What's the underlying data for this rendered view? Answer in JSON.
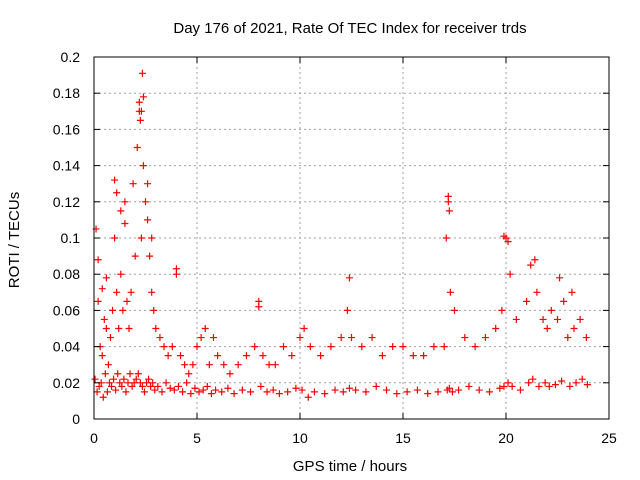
{
  "chart_data": {
    "type": "scatter",
    "title": "Day 176 of 2021, Rate Of TEC Index for receiver trds",
    "xlabel": "GPS time / hours",
    "ylabel": "ROTI / TECUs",
    "xlim": [
      0,
      25
    ],
    "ylim": [
      0,
      0.2
    ],
    "xticks": [
      0,
      5,
      10,
      15,
      20,
      25
    ],
    "xtick_labels": [
      "0",
      "5",
      "10",
      "15",
      "20",
      "25"
    ],
    "yticks": [
      0,
      0.02,
      0.04,
      0.06,
      0.08,
      0.1,
      0.12,
      0.14,
      0.16,
      0.18,
      0.2
    ],
    "ytick_labels": [
      "0",
      "0.02",
      "0.04",
      "0.06",
      "0.08",
      "0.1",
      "0.12",
      "0.14",
      "0.16",
      "0.18",
      "0.2"
    ],
    "grid": true,
    "marker": "+",
    "color": "#ff0000",
    "series": [
      {
        "name": "ROTI",
        "x": [
          0.05,
          0.1,
          0.2,
          0.3,
          0.4,
          0.5,
          0.6,
          0.7,
          0.8,
          0.9,
          1.0,
          1.1,
          1.2,
          1.3,
          1.4,
          1.5,
          1.6,
          1.7,
          1.8,
          1.9,
          2.0,
          2.1,
          2.2,
          2.3,
          2.4,
          2.5,
          2.6,
          2.7,
          2.8,
          2.9,
          3.0,
          3.2,
          3.4,
          3.6,
          3.8,
          4.0,
          4.2,
          4.4,
          4.6,
          4.8,
          5.0,
          5.2,
          5.4,
          5.6,
          5.8,
          6.0,
          6.3,
          6.6,
          7.0,
          7.4,
          7.8,
          8.0,
          8.2,
          8.5,
          8.8,
          9.2,
          9.6,
          10.0,
          10.2,
          10.5,
          11.0,
          11.5,
          12.0,
          12.3,
          12.5,
          13.0,
          13.5,
          14.0,
          14.5,
          15.0,
          15.5,
          16.0,
          16.5,
          17.0,
          17.1,
          17.2,
          17.3,
          17.5,
          18.0,
          18.5,
          19.0,
          19.5,
          19.8,
          20.0,
          20.2,
          20.5,
          21.0,
          21.2,
          21.5,
          21.8,
          22.0,
          22.2,
          22.5,
          22.8,
          23.0,
          23.3,
          23.6,
          23.9,
          0.15,
          0.25,
          0.35,
          0.45,
          0.55,
          0.65,
          0.75,
          0.85,
          0.95,
          1.05,
          1.15,
          1.25,
          1.35,
          1.45,
          1.55,
          1.65,
          1.75,
          1.85,
          1.95,
          2.05,
          2.15,
          2.25,
          2.35,
          2.45,
          2.55,
          2.65,
          2.75,
          2.85,
          2.95,
          3.1,
          3.3,
          3.5,
          3.7,
          3.9,
          4.1,
          4.3,
          4.5,
          4.7,
          4.9,
          5.1,
          5.3,
          5.5,
          5.7,
          5.9,
          6.2,
          6.5,
          6.8,
          7.2,
          7.6,
          8.1,
          8.4,
          8.7,
          9.0,
          9.4,
          9.8,
          10.1,
          10.4,
          10.7,
          11.2,
          11.7,
          12.1,
          12.4,
          12.7,
          13.2,
          13.7,
          14.2,
          14.7,
          15.2,
          15.7,
          16.2,
          16.7,
          17.15,
          17.25,
          17.4,
          17.7,
          18.2,
          18.7,
          19.2,
          19.7,
          19.9,
          20.1,
          20.3,
          20.7,
          21.1,
          21.3,
          21.6,
          21.9,
          22.1,
          22.4,
          22.7,
          23.1,
          23.4,
          23.7,
          23.95,
          2.35,
          2.4,
          2.2,
          2.25,
          2.3,
          1.0,
          1.1,
          1.3,
          1.5,
          2.6,
          2.8,
          17.2,
          17.25,
          19.9,
          20.1,
          21.4,
          22.6,
          23.2,
          0.2,
          0.4,
          0.6,
          12.4,
          4.0,
          8.0
        ],
        "y": [
          0.022,
          0.105,
          0.065,
          0.04,
          0.035,
          0.055,
          0.05,
          0.03,
          0.045,
          0.06,
          0.1,
          0.07,
          0.05,
          0.08,
          0.06,
          0.12,
          0.065,
          0.05,
          0.07,
          0.13,
          0.09,
          0.15,
          0.17,
          0.1,
          0.14,
          0.12,
          0.11,
          0.09,
          0.07,
          0.06,
          0.05,
          0.045,
          0.04,
          0.035,
          0.04,
          0.08,
          0.035,
          0.03,
          0.025,
          0.03,
          0.04,
          0.045,
          0.05,
          0.03,
          0.045,
          0.035,
          0.03,
          0.025,
          0.03,
          0.035,
          0.04,
          0.065,
          0.035,
          0.03,
          0.03,
          0.04,
          0.035,
          0.045,
          0.05,
          0.04,
          0.035,
          0.04,
          0.045,
          0.06,
          0.045,
          0.04,
          0.045,
          0.035,
          0.04,
          0.04,
          0.035,
          0.035,
          0.04,
          0.04,
          0.1,
          0.12,
          0.07,
          0.06,
          0.045,
          0.04,
          0.045,
          0.05,
          0.06,
          0.1,
          0.08,
          0.055,
          0.065,
          0.085,
          0.07,
          0.055,
          0.05,
          0.06,
          0.055,
          0.065,
          0.045,
          0.05,
          0.055,
          0.045,
          0.015,
          0.018,
          0.02,
          0.012,
          0.025,
          0.015,
          0.02,
          0.018,
          0.022,
          0.016,
          0.025,
          0.02,
          0.018,
          0.022,
          0.015,
          0.02,
          0.025,
          0.018,
          0.02,
          0.022,
          0.025,
          0.02,
          0.018,
          0.015,
          0.02,
          0.022,
          0.018,
          0.02,
          0.016,
          0.018,
          0.015,
          0.02,
          0.017,
          0.016,
          0.018,
          0.015,
          0.02,
          0.014,
          0.017,
          0.015,
          0.016,
          0.018,
          0.014,
          0.016,
          0.015,
          0.017,
          0.014,
          0.016,
          0.015,
          0.018,
          0.015,
          0.016,
          0.014,
          0.015,
          0.017,
          0.016,
          0.012,
          0.015,
          0.014,
          0.016,
          0.015,
          0.017,
          0.016,
          0.015,
          0.018,
          0.016,
          0.014,
          0.015,
          0.016,
          0.014,
          0.015,
          0.016,
          0.017,
          0.015,
          0.016,
          0.018,
          0.016,
          0.015,
          0.017,
          0.018,
          0.02,
          0.018,
          0.016,
          0.02,
          0.022,
          0.018,
          0.02,
          0.018,
          0.019,
          0.021,
          0.018,
          0.02,
          0.022,
          0.019,
          0.191,
          0.178,
          0.175,
          0.165,
          0.17,
          0.132,
          0.125,
          0.115,
          0.108,
          0.13,
          0.1,
          0.123,
          0.115,
          0.101,
          0.098,
          0.088,
          0.078,
          0.07,
          0.088,
          0.072,
          0.078,
          0.078,
          0.083,
          0.062
        ]
      }
    ]
  }
}
